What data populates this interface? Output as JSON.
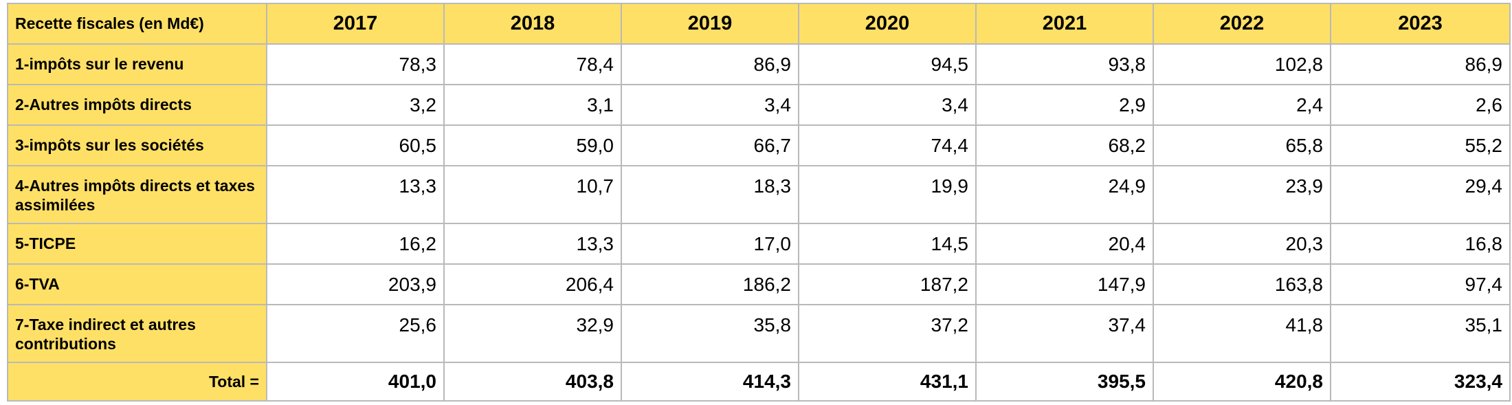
{
  "table": {
    "corner_label": "Recette fiscales (en Md€)",
    "years": [
      "2017",
      "2018",
      "2019",
      "2020",
      "2021",
      "2022",
      "2023"
    ],
    "rows": [
      {
        "label": "1-impôts sur le revenu",
        "values": [
          "78,3",
          "78,4",
          "86,9",
          "94,5",
          "93,8",
          "102,8",
          "86,9"
        ]
      },
      {
        "label": "2-Autres impôts directs",
        "values": [
          "3,2",
          "3,1",
          "3,4",
          "3,4",
          "2,9",
          "2,4",
          "2,6"
        ]
      },
      {
        "label": "3-impôts sur les sociétés",
        "values": [
          "60,5",
          "59,0",
          "66,7",
          "74,4",
          "68,2",
          "65,8",
          "55,2"
        ]
      },
      {
        "label": "4-Autres impôts directs et taxes  assimilées",
        "values": [
          "13,3",
          "10,7",
          "18,3",
          "19,9",
          "24,9",
          "23,9",
          "29,4"
        ]
      },
      {
        "label": "5-TICPE",
        "values": [
          "16,2",
          "13,3",
          "17,0",
          "14,5",
          "20,4",
          "20,3",
          "16,8"
        ]
      },
      {
        "label": "6-TVA",
        "values": [
          "203,9",
          "206,4",
          "186,2",
          "187,2",
          "147,9",
          "163,8",
          "97,4"
        ]
      },
      {
        "label": "7-Taxe indirect et autres contributions",
        "values": [
          "25,6",
          "32,9",
          "35,8",
          "37,2",
          "37,4",
          "41,8",
          "35,1"
        ]
      }
    ],
    "total": {
      "label": "Total =",
      "values": [
        "401,0",
        "403,8",
        "414,3",
        "431,1",
        "395,5",
        "420,8",
        "323,4"
      ]
    }
  }
}
